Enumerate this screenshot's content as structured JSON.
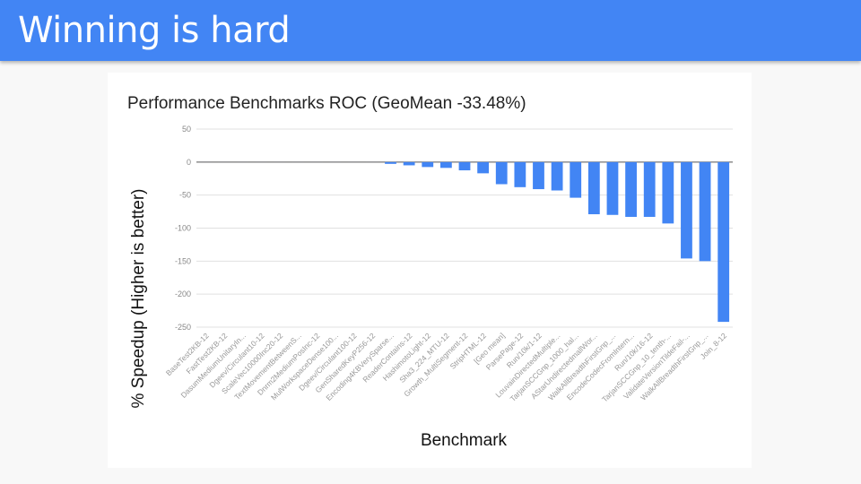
{
  "slide": {
    "title": "Winning is hard"
  },
  "colors": {
    "header": "#4285f4",
    "bar": "#4285f4"
  },
  "chart_data": {
    "type": "bar",
    "title": "Performance Benchmarks ROC (GeoMean -33.48%)",
    "xlabel": "Benchmark",
    "ylabel": "% Speedup (Higher is better)",
    "ylim": [
      -250,
      50
    ],
    "yticks": [
      50,
      0,
      -50,
      -100,
      -150,
      -200,
      -250
    ],
    "grid": true,
    "categories": [
      "BaseTest2KB-12",
      "FastTest2KB-12",
      "DasumMediumUnitaryIn...",
      "Dgeev/Circulant10-12",
      "ScaleVec10000Inc20-12",
      "TextMovementBetweenS...",
      "Dnrm2MediumPosInc-12",
      "MulWorkspaceDense100...",
      "Dgeev/Circulant100-12",
      "GenSharedKeyP256-12",
      "Encoding4KBVerySparse...",
      "ReaderContains-12",
      "HashimotoLight-12",
      "Sha3_224_MTU-12",
      "Growth_MultiSegment-12",
      "StripHTML-12",
      "[Geo mean]",
      "ParsePage-12",
      "Run/10k/1-12",
      "LouvainDirectedMultiple...",
      "TarjanSCCGnp_1000_hal...",
      "AStarUndirectedmallWor...",
      "WalkAllBreadthFirstGnp_...",
      "EncodeCodecFromIntern...",
      "Run/10k/16-12",
      "TarjanSCCGnp_10_tenth-...",
      "ValidateVersionTildeFail-...",
      "WalkAllBreadthFirstGnp_...",
      "Join_8-12"
    ],
    "values": [
      0,
      0,
      0,
      0,
      0,
      0,
      0,
      0,
      0,
      0,
      -2.7,
      -4.9,
      -7.5,
      -8.8,
      -12.5,
      -17,
      -33.48,
      -38,
      -41,
      -43,
      -54,
      -79,
      -80,
      -83,
      -83,
      -93,
      -146,
      -150,
      -242
    ]
  }
}
